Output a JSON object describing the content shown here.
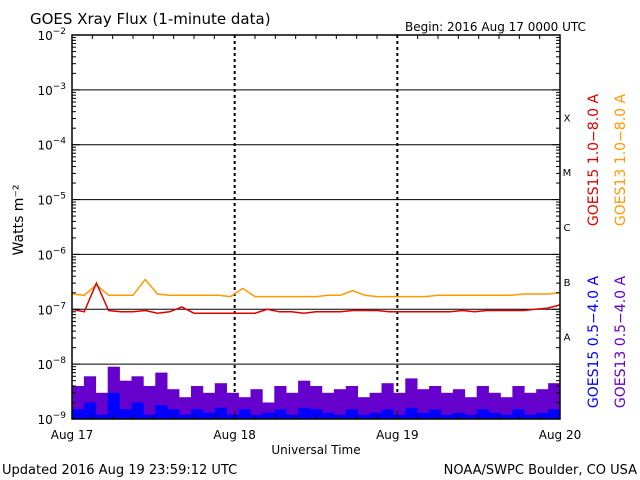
{
  "chart_data": {
    "type": "line",
    "title": "GOES Xray Flux (1-minute data)",
    "begin_label": "Begin:  2016 Aug 17 0000 UTC",
    "ylabel": "Watts m⁻²",
    "xlabel": "Universal Time",
    "y_scale": "log",
    "ylim": [
      1e-09,
      0.01
    ],
    "y_ticks": [
      {
        "base": "10",
        "exp": "−2"
      },
      {
        "base": "10",
        "exp": "−3"
      },
      {
        "base": "10",
        "exp": "−4"
      },
      {
        "base": "10",
        "exp": "−5"
      },
      {
        "base": "10",
        "exp": "−6"
      },
      {
        "base": "10",
        "exp": "−7"
      },
      {
        "base": "10",
        "exp": "−8"
      },
      {
        "base": "10",
        "exp": "−9"
      }
    ],
    "x_ticks": [
      "Aug 17",
      "Aug 18",
      "Aug 19",
      "Aug 20"
    ],
    "flare_classes": [
      "X",
      "M",
      "C",
      "B",
      "A"
    ],
    "series": [
      {
        "name": "GOES15 1.0−8.0 A",
        "color": "#dd0000",
        "values": [
          1e-07,
          9e-08,
          3e-07,
          9.5e-08,
          9e-08,
          9e-08,
          9.5e-08,
          8.5e-08,
          9e-08,
          1.1e-07,
          8.5e-08,
          8.5e-08,
          8.5e-08,
          8.5e-08,
          8.5e-08,
          8.5e-08,
          1e-07,
          9e-08,
          9e-08,
          8.5e-08,
          9e-08,
          9e-08,
          9e-08,
          9.5e-08,
          9.5e-08,
          9.5e-08,
          9e-08,
          9e-08,
          9e-08,
          9e-08,
          9e-08,
          9e-08,
          9.5e-08,
          9e-08,
          9.5e-08,
          9.5e-08,
          9.5e-08,
          9.5e-08,
          1e-07,
          1.05e-07,
          1.2e-07
        ]
      },
      {
        "name": "GOES13 1.0−8.0 A",
        "color": "#ff9900",
        "values": [
          1.9e-07,
          1.8e-07,
          2.8e-07,
          1.8e-07,
          1.8e-07,
          1.8e-07,
          3.5e-07,
          1.9e-07,
          1.8e-07,
          1.8e-07,
          1.8e-07,
          1.8e-07,
          1.8e-07,
          1.7e-07,
          2.4e-07,
          1.7e-07,
          1.7e-07,
          1.7e-07,
          1.7e-07,
          1.7e-07,
          1.7e-07,
          1.8e-07,
          1.8e-07,
          2.2e-07,
          1.8e-07,
          1.7e-07,
          1.7e-07,
          1.7e-07,
          1.7e-07,
          1.7e-07,
          1.8e-07,
          1.8e-07,
          1.8e-07,
          1.8e-07,
          1.8e-07,
          1.8e-07,
          1.8e-07,
          1.9e-07,
          1.9e-07,
          1.9e-07,
          2e-07
        ]
      },
      {
        "name": "GOES15 0.5−4.0 A",
        "color": "#0000ff",
        "values": [
          1.5e-09,
          2e-09,
          1.2e-09,
          3e-09,
          1.5e-09,
          2e-09,
          1.2e-09,
          1.8e-09,
          1.5e-09,
          1.2e-09,
          1.5e-09,
          1.3e-09,
          1.6e-09,
          1.2e-09,
          1.5e-09,
          1.2e-09,
          1.3e-09,
          1.5e-09,
          1.2e-09,
          1.6e-09,
          1.5e-09,
          1.3e-09,
          1.2e-09,
          1.5e-09,
          1.2e-09,
          1.3e-09,
          1.5e-09,
          1.2e-09,
          1.6e-09,
          1.3e-09,
          1.5e-09,
          1.2e-09,
          1.3e-09,
          1.2e-09,
          1.5e-09,
          1.3e-09,
          1.2e-09,
          1.5e-09,
          1.2e-09,
          1.3e-09,
          1.5e-09
        ]
      },
      {
        "name": "GOES13 0.5−4.0 A",
        "color": "#6600cc",
        "values": [
          4e-09,
          6e-09,
          3e-09,
          9e-09,
          5e-09,
          6e-09,
          4e-09,
          7e-09,
          3.5e-09,
          2.5e-09,
          4e-09,
          3e-09,
          4.5e-09,
          3e-09,
          2.5e-09,
          3.5e-09,
          2e-09,
          4e-09,
          3e-09,
          5e-09,
          4e-09,
          3e-09,
          3.5e-09,
          4e-09,
          2.5e-09,
          3e-09,
          4.5e-09,
          3e-09,
          5.5e-09,
          3.5e-09,
          4e-09,
          3e-09,
          3.5e-09,
          2.5e-09,
          4e-09,
          3e-09,
          2.5e-09,
          4e-09,
          3e-09,
          3.5e-09,
          4.5e-09
        ]
      }
    ],
    "legend_position": "right",
    "grid": true
  },
  "footer": {
    "updated": "Updated 2016 Aug 19 23:59:12 UTC",
    "credit": "NOAA/SWPC Boulder, CO USA"
  }
}
